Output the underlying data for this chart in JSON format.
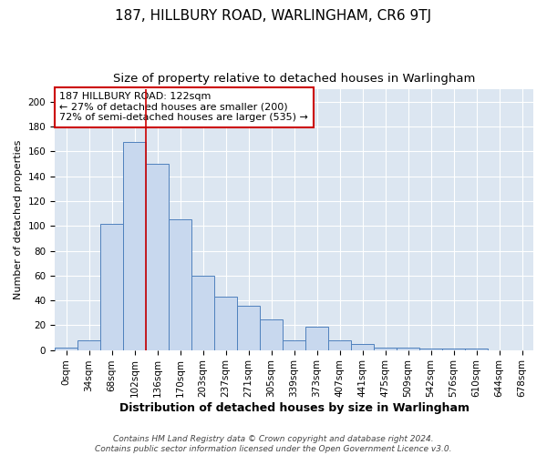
{
  "title1": "187, HILLBURY ROAD, WARLINGHAM, CR6 9TJ",
  "title2": "Size of property relative to detached houses in Warlingham",
  "xlabel": "Distribution of detached houses by size in Warlingham",
  "ylabel": "Number of detached properties",
  "bar_labels": [
    "0sqm",
    "34sqm",
    "68sqm",
    "102sqm",
    "136sqm",
    "170sqm",
    "203sqm",
    "237sqm",
    "271sqm",
    "305sqm",
    "339sqm",
    "373sqm",
    "407sqm",
    "441sqm",
    "475sqm",
    "509sqm",
    "542sqm",
    "576sqm",
    "610sqm",
    "644sqm",
    "678sqm"
  ],
  "bar_heights": [
    2,
    8,
    102,
    168,
    150,
    105,
    60,
    43,
    36,
    25,
    8,
    19,
    8,
    5,
    2,
    2,
    1,
    1,
    1,
    0,
    0
  ],
  "bar_color": "#c8d8ee",
  "bar_edge_color": "#4f81bd",
  "vline_color": "#cc0000",
  "vline_x_index": 3,
  "annotation_text": "187 HILLBURY ROAD: 122sqm\n← 27% of detached houses are smaller (200)\n72% of semi-detached houses are larger (535) →",
  "annotation_box_color": "#ffffff",
  "annotation_box_edge": "#cc0000",
  "ylim": [
    0,
    210
  ],
  "yticks": [
    0,
    20,
    40,
    60,
    80,
    100,
    120,
    140,
    160,
    180,
    200
  ],
  "background_color": "#dce6f1",
  "grid_color": "#ffffff",
  "footer1": "Contains HM Land Registry data © Crown copyright and database right 2024.",
  "footer2": "Contains public sector information licensed under the Open Government Licence v3.0.",
  "title1_fontsize": 11,
  "title2_fontsize": 9.5,
  "xlabel_fontsize": 9,
  "ylabel_fontsize": 8,
  "tick_fontsize": 7.5,
  "annotation_fontsize": 8,
  "footer_fontsize": 6.5
}
